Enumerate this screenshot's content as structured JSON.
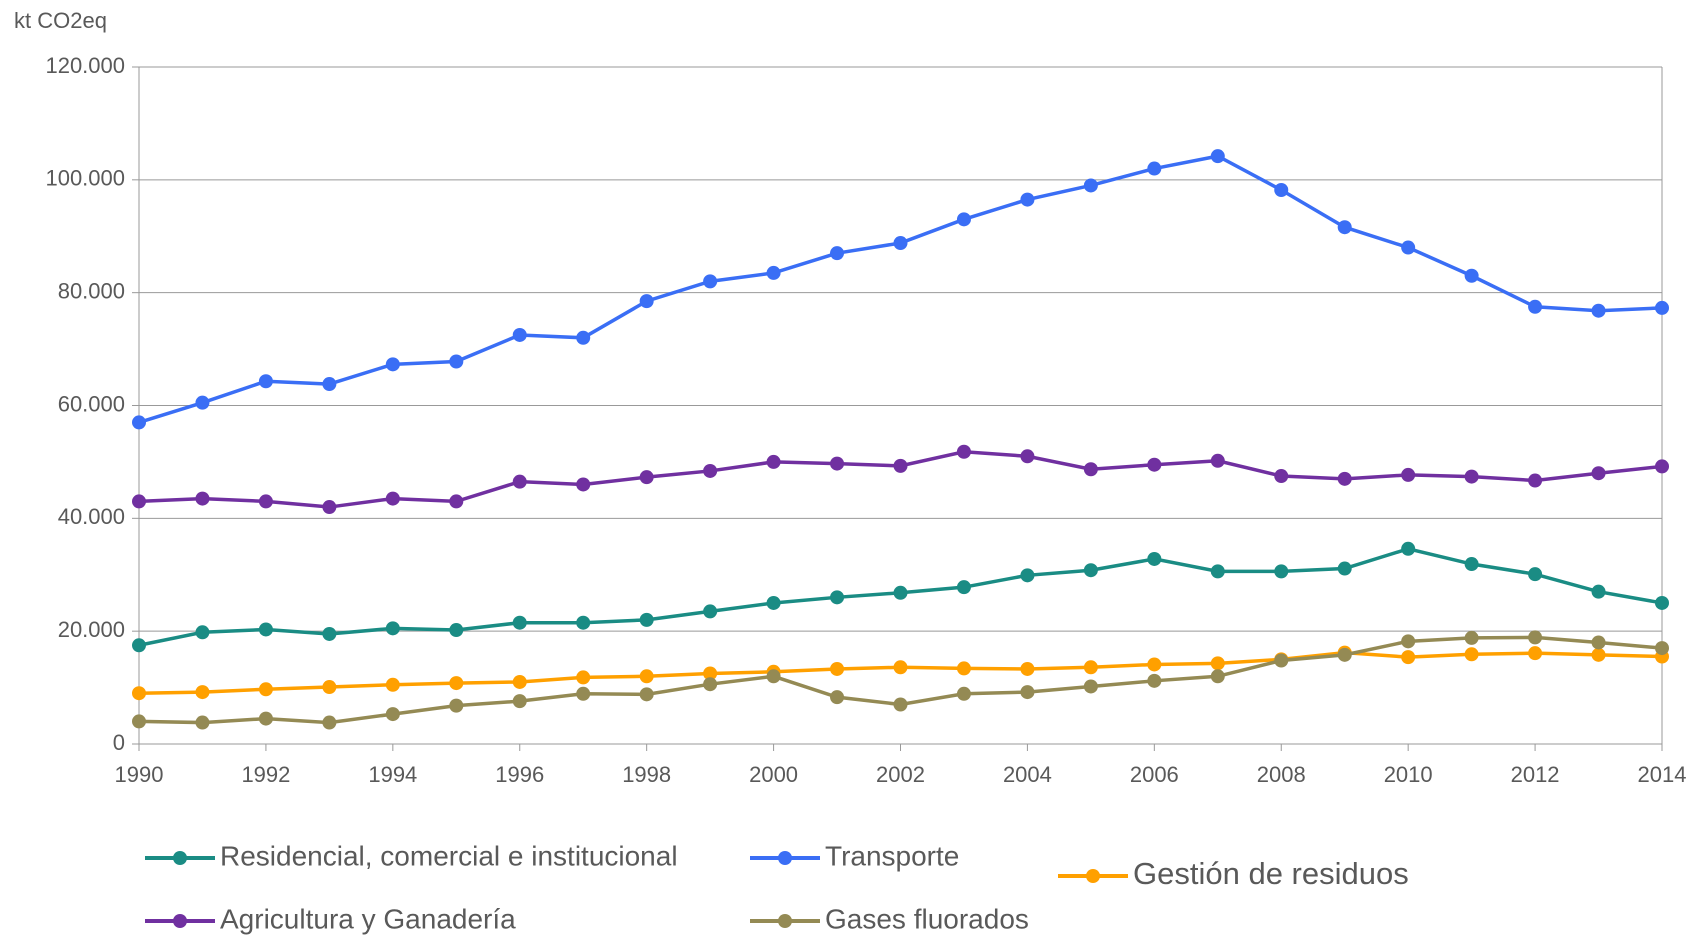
{
  "chart_data": {
    "type": "line",
    "y_axis_label": "kt CO2eq",
    "x": [
      1990,
      1991,
      1992,
      1993,
      1994,
      1995,
      1996,
      1997,
      1998,
      1999,
      2000,
      2001,
      2002,
      2003,
      2004,
      2005,
      2006,
      2007,
      2008,
      2009,
      2010,
      2011,
      2012,
      2013,
      2014
    ],
    "xlim": [
      1990,
      2014
    ],
    "xticks": [
      1990,
      1992,
      1994,
      1996,
      1998,
      2000,
      2002,
      2004,
      2006,
      2008,
      2010,
      2012,
      2014
    ],
    "ylim": [
      0,
      120000
    ],
    "yticks": [
      0,
      {
        "value": 20000,
        "label": "20.000"
      },
      {
        "value": 40000,
        "label": "40.000"
      },
      {
        "value": 60000,
        "label": "60.000"
      },
      {
        "value": 80000,
        "label": "80.000"
      },
      {
        "value": 100000,
        "label": "100.000"
      },
      {
        "value": 120000,
        "label": "120.000"
      }
    ],
    "grid": true,
    "legend": "bottom",
    "series": [
      {
        "name": "Residencial, comercial e institucional",
        "color": "#1a8c84",
        "values": [
          17500,
          19800,
          20300,
          19500,
          20500,
          20200,
          21500,
          21500,
          22000,
          23500,
          25000,
          26000,
          26800,
          27800,
          29900,
          30800,
          32800,
          30600,
          30600,
          31100,
          34600,
          31900,
          30100,
          27000,
          25000
        ]
      },
      {
        "name": "Transporte",
        "color": "#3a6ef5",
        "values": [
          57000,
          60500,
          64300,
          63800,
          67300,
          67800,
          72500,
          72000,
          78500,
          82000,
          83500,
          87000,
          88800,
          93000,
          96500,
          99000,
          102000,
          104200,
          98200,
          91600,
          88000,
          83000,
          77500,
          76800,
          77300
        ]
      },
      {
        "name": "Gestión de residuos",
        "color": "#ffa000",
        "values": [
          9000,
          9200,
          9700,
          10100,
          10500,
          10800,
          11000,
          11800,
          12000,
          12500,
          12800,
          13300,
          13600,
          13400,
          13300,
          13600,
          14100,
          14300,
          15000,
          16200,
          15400,
          15900,
          16100,
          15800,
          15500
        ]
      },
      {
        "name": "Agricultura y Ganadería",
        "color": "#7030a0",
        "values": [
          43000,
          43500,
          43000,
          42000,
          43500,
          43000,
          46500,
          46000,
          47300,
          48400,
          50000,
          49700,
          49300,
          51800,
          51000,
          48700,
          49500,
          50200,
          47500,
          47000,
          47700,
          47400,
          46700,
          48000,
          49200
        ]
      },
      {
        "name": "Gases fluorados",
        "color": "#948a54",
        "values": [
          4000,
          3800,
          4500,
          3800,
          5300,
          6800,
          7600,
          8900,
          8800,
          10600,
          12000,
          8300,
          7000,
          8900,
          9200,
          10200,
          11200,
          12000,
          14800,
          15800,
          18200,
          18800,
          18900,
          18000,
          17000
        ]
      }
    ]
  }
}
